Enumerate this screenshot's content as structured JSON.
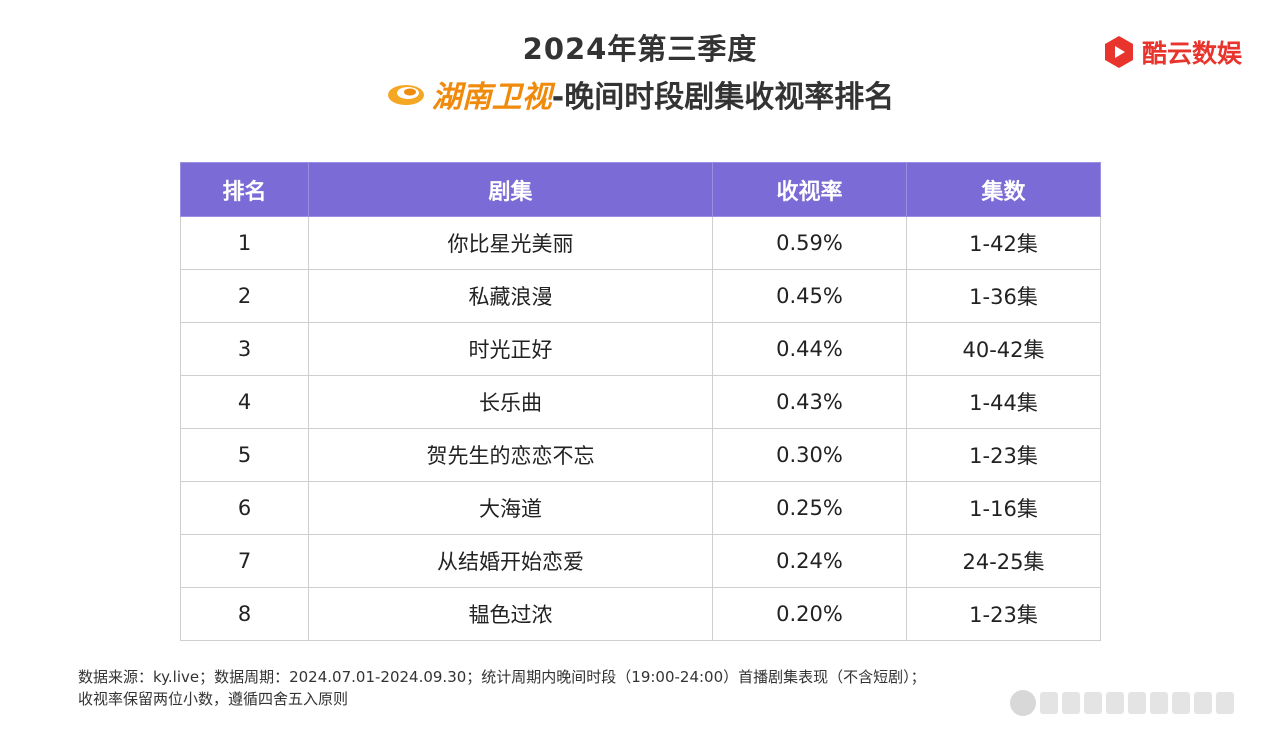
{
  "title": {
    "line1": "2024年第三季度",
    "channel": "湖南卫视",
    "line2_rest": "-晚间时段剧集收视率排名"
  },
  "brand": {
    "name": "酷云数娱",
    "color": "#e8342c"
  },
  "table": {
    "header_color": "#7b6bd6",
    "headers": [
      "排名",
      "剧集",
      "收视率",
      "集数"
    ],
    "rows": [
      {
        "rank": "1",
        "drama": "你比星光美丽",
        "rating": "0.59%",
        "episodes": "1-42集"
      },
      {
        "rank": "2",
        "drama": "私藏浪漫",
        "rating": "0.45%",
        "episodes": "1-36集"
      },
      {
        "rank": "3",
        "drama": "时光正好",
        "rating": "0.44%",
        "episodes": "40-42集"
      },
      {
        "rank": "4",
        "drama": "长乐曲",
        "rating": "0.43%",
        "episodes": "1-44集"
      },
      {
        "rank": "5",
        "drama": "贺先生的恋恋不忘",
        "rating": "0.30%",
        "episodes": "1-23集"
      },
      {
        "rank": "6",
        "drama": "大海道",
        "rating": "0.25%",
        "episodes": "1-16集"
      },
      {
        "rank": "7",
        "drama": "从结婚开始恋爱",
        "rating": "0.24%",
        "episodes": "24-25集"
      },
      {
        "rank": "8",
        "drama": "韫色过浓",
        "rating": "0.20%",
        "episodes": "1-23集"
      }
    ]
  },
  "footnote": {
    "line1": "数据来源：ky.live；数据周期：2024.07.01-2024.09.30；统计周期内晚间时段（19:00-24:00）首播剧集表现（不含短剧）；",
    "line2": "收视率保留两位小数，遵循四舍五入原则"
  }
}
